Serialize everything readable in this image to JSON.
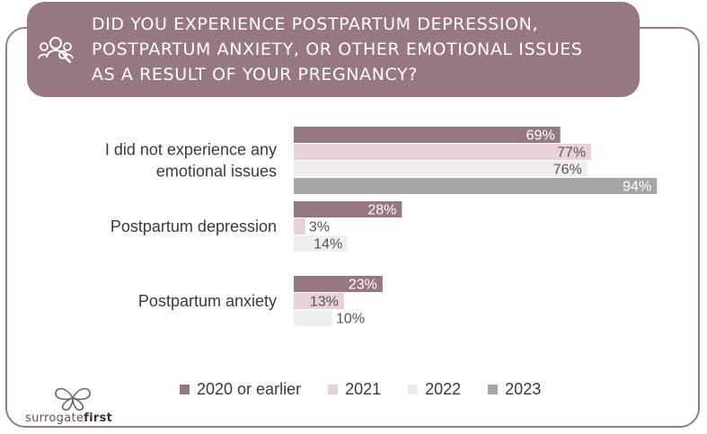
{
  "header": {
    "title_lines": [
      "DID YOU EXPERIENCE POSTPARTUM DEPRESSION,",
      "POSTPARTUM ANXIETY, OR OTHER EMOTIONAL ISSUES",
      "AS A RESULT OF YOUR PREGNANCY?"
    ],
    "icon": "people-group-icon"
  },
  "brand": {
    "name_part1": "surrogate",
    "name_part2": "first",
    "logo": "butterfly-logo"
  },
  "colors": {
    "header_bg": "#977880",
    "series": [
      "#977880",
      "#e8d2d5",
      "#f0eeee",
      "#a6a6a6"
    ],
    "value_text": [
      "#ffffff",
      "#555555",
      "#555555",
      "#ffffff"
    ]
  },
  "chart_data": {
    "type": "bar",
    "orientation": "horizontal",
    "categories": [
      [
        "I did not experience any",
        "emotional issues"
      ],
      [
        "Postpartum depression"
      ],
      [
        "Postpartum anxiety"
      ]
    ],
    "series": [
      {
        "name": "2020 or earlier",
        "values": [
          69,
          28,
          23
        ]
      },
      {
        "name": "2021",
        "values": [
          77,
          3,
          13
        ]
      },
      {
        "name": "2022",
        "values": [
          76,
          14,
          10
        ]
      },
      {
        "name": "2023",
        "values": [
          94,
          null,
          null
        ]
      }
    ],
    "value_suffix": "%",
    "xlim": [
      0,
      100
    ],
    "legend_position": "bottom",
    "grid": false
  }
}
